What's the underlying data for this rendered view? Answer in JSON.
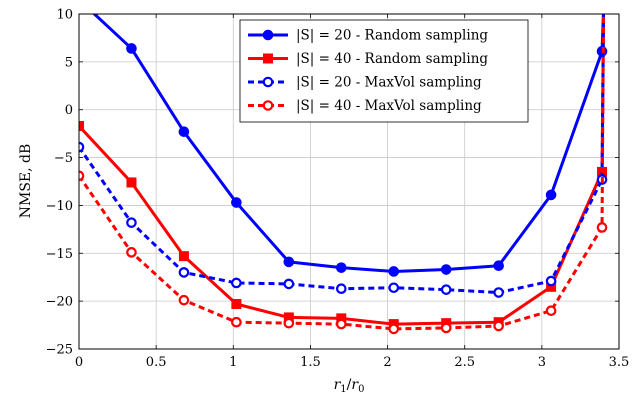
{
  "chart_data": {
    "type": "line",
    "xlabel": "r₁/r₀",
    "ylabel": "NMSE, dB",
    "xlim": [
      0,
      3.5
    ],
    "ylim": [
      -25,
      10
    ],
    "xticks": [
      "0",
      "0.5",
      "1",
      "1.5",
      "2",
      "2.5",
      "3",
      "3.5"
    ],
    "yticks": [
      "10",
      "5",
      "0",
      "−5",
      "−10",
      "−15",
      "−20",
      "−25"
    ],
    "xtick_values": [
      0,
      0.5,
      1,
      1.5,
      2,
      2.5,
      3,
      3.5
    ],
    "ytick_values": [
      10,
      5,
      0,
      -5,
      -10,
      -15,
      -20,
      -25
    ],
    "grid": true,
    "legend_position": "top-right",
    "series": [
      {
        "name": "|S| = 20 - Random sampling",
        "color": "#0000ff",
        "dash": "solid",
        "marker": "circle-filled",
        "x": [
          0,
          0.34,
          0.68,
          1.02,
          1.36,
          1.7,
          2.04,
          2.38,
          2.72,
          3.06,
          3.39,
          3.4
        ],
        "y": [
          11.5,
          6.4,
          -2.3,
          -9.7,
          -15.9,
          -16.5,
          -16.9,
          -16.7,
          -16.3,
          -8.9,
          6.1,
          10.5
        ]
      },
      {
        "name": "|S| = 40 - Random sampling",
        "color": "#ff0000",
        "dash": "solid",
        "marker": "square-filled",
        "x": [
          0,
          0.34,
          0.68,
          1.02,
          1.36,
          1.7,
          2.04,
          2.38,
          2.72,
          3.06,
          3.39,
          3.4
        ],
        "y": [
          -1.7,
          -7.6,
          -15.3,
          -20.3,
          -21.7,
          -21.8,
          -22.4,
          -22.3,
          -22.2,
          -18.5,
          -6.5,
          10.5
        ]
      },
      {
        "name": "|S| = 20 - MaxVol sampling",
        "color": "#0000ff",
        "dash": "dashed",
        "marker": "circle-open",
        "x": [
          0,
          0.34,
          0.68,
          1.02,
          1.36,
          1.7,
          2.04,
          2.38,
          2.72,
          3.06,
          3.39,
          3.4
        ],
        "y": [
          -3.9,
          -11.8,
          -17.0,
          -18.1,
          -18.2,
          -18.7,
          -18.6,
          -18.8,
          -19.1,
          -17.9,
          -7.3,
          10.5
        ]
      },
      {
        "name": "|S| = 40 - MaxVol sampling",
        "color": "#ff0000",
        "dash": "dashed",
        "marker": "circle-open",
        "x": [
          0,
          0.34,
          0.68,
          1.02,
          1.36,
          1.7,
          2.04,
          2.38,
          2.72,
          3.06,
          3.39,
          3.4
        ],
        "y": [
          -6.9,
          -14.9,
          -19.9,
          -22.2,
          -22.3,
          -22.4,
          -22.9,
          -22.8,
          -22.6,
          -21.0,
          -12.3,
          10.5
        ]
      }
    ]
  }
}
